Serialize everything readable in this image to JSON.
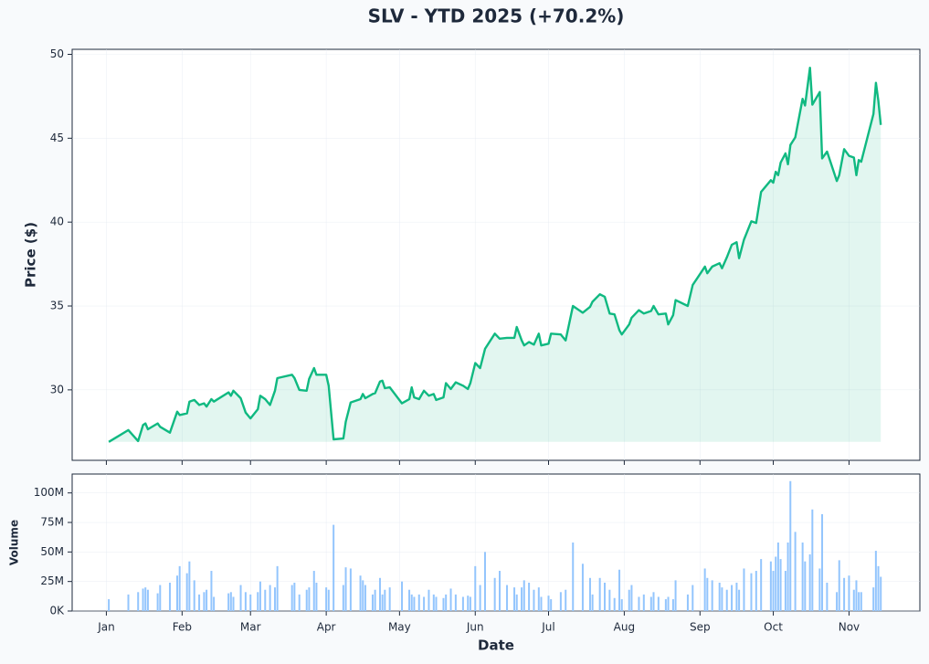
{
  "chart_data": [
    {
      "type": "line",
      "title": "SLV - YTD 2025 (+70.2%)",
      "ylabel": "Price ($)",
      "color": "#10b981",
      "x": [
        1,
        9,
        13,
        15,
        16,
        17,
        21,
        22,
        26,
        29,
        30,
        33,
        34,
        36,
        38,
        40,
        41,
        43,
        44,
        50,
        51,
        52,
        55,
        57,
        59,
        62,
        63,
        65,
        67,
        69,
        70,
        76,
        77,
        79,
        82,
        83,
        85,
        86,
        90,
        91,
        93,
        97,
        98,
        100,
        104,
        105,
        106,
        109,
        110,
        112,
        113,
        114,
        116,
        121,
        124,
        125,
        126,
        128,
        130,
        132,
        134,
        135,
        138,
        139,
        141,
        143,
        146,
        148,
        149,
        151,
        153,
        155,
        159,
        161,
        164,
        167,
        168,
        170,
        171,
        173,
        175,
        177,
        178,
        181,
        182,
        186,
        188,
        191,
        195,
        198,
        199,
        202,
        204,
        206,
        208,
        210,
        211,
        214,
        215,
        218,
        220,
        223,
        224,
        226,
        229,
        230,
        232,
        233,
        238,
        240,
        245,
        246,
        248,
        251,
        252,
        254,
        256,
        258,
        259,
        261,
        264,
        266,
        268,
        272,
        273,
        274,
        275,
        276,
        278,
        279,
        280,
        282,
        285,
        286,
        288,
        289,
        292,
        293,
        295,
        299,
        300,
        302,
        304,
        306,
        307,
        308,
        309,
        314,
        315,
        316,
        317
      ],
      "values": [
        26.9,
        27.6,
        26.95,
        27.9,
        28.0,
        27.65,
        28.0,
        27.8,
        27.45,
        28.7,
        28.5,
        28.6,
        29.3,
        29.4,
        29.1,
        29.2,
        29.0,
        29.45,
        29.3,
        29.85,
        29.65,
        29.95,
        29.5,
        28.65,
        28.3,
        28.85,
        29.65,
        29.45,
        29.1,
        29.95,
        30.7,
        30.9,
        30.7,
        30.0,
        29.95,
        30.65,
        31.3,
        30.9,
        30.9,
        30.25,
        27.05,
        27.1,
        28.1,
        29.25,
        29.45,
        29.75,
        29.5,
        29.75,
        29.8,
        30.5,
        30.55,
        30.1,
        30.15,
        29.2,
        29.45,
        30.15,
        29.55,
        29.45,
        29.95,
        29.65,
        29.75,
        29.4,
        29.55,
        30.4,
        30.05,
        30.45,
        30.25,
        30.05,
        30.4,
        31.6,
        31.3,
        32.45,
        33.35,
        33.05,
        33.1,
        33.1,
        33.75,
        32.95,
        32.65,
        32.85,
        32.7,
        33.35,
        32.65,
        32.75,
        33.35,
        33.3,
        32.95,
        35.0,
        34.6,
        34.95,
        35.25,
        35.7,
        35.55,
        34.55,
        34.5,
        33.55,
        33.3,
        33.9,
        34.3,
        34.75,
        34.55,
        34.7,
        35.0,
        34.5,
        34.55,
        33.9,
        34.45,
        35.35,
        35.0,
        36.25,
        37.35,
        36.95,
        37.35,
        37.55,
        37.25,
        37.9,
        38.65,
        38.8,
        37.85,
        38.95,
        40.05,
        39.95,
        41.8,
        42.5,
        42.35,
        43.0,
        42.8,
        43.55,
        44.1,
        43.45,
        44.6,
        45.05,
        47.35,
        46.95,
        49.2,
        47.0,
        47.75,
        43.8,
        44.2,
        42.45,
        42.8,
        44.35,
        43.95,
        43.85,
        42.8,
        43.7,
        43.6,
        46.45,
        48.3,
        47.25,
        45.8
      ],
      "ylim": [
        25.8,
        50.3
      ],
      "yticks": [
        30,
        35,
        40,
        45,
        50
      ],
      "grid": true
    },
    {
      "type": "bar",
      "xlabel": "Date",
      "ylabel": "Volume",
      "color": "#93c5fd",
      "x": [
        1,
        9,
        13,
        15,
        16,
        17,
        21,
        22,
        26,
        29,
        30,
        33,
        34,
        36,
        38,
        40,
        41,
        43,
        44,
        50,
        51,
        52,
        55,
        57,
        59,
        62,
        63,
        65,
        67,
        69,
        70,
        76,
        77,
        79,
        82,
        83,
        85,
        86,
        90,
        91,
        93,
        97,
        98,
        100,
        104,
        105,
        106,
        109,
        110,
        112,
        113,
        114,
        116,
        121,
        124,
        125,
        126,
        128,
        130,
        132,
        134,
        135,
        138,
        139,
        141,
        143,
        146,
        148,
        149,
        151,
        153,
        155,
        159,
        161,
        164,
        167,
        168,
        170,
        171,
        173,
        175,
        177,
        178,
        181,
        182,
        186,
        188,
        191,
        195,
        198,
        199,
        202,
        204,
        206,
        208,
        210,
        211,
        214,
        215,
        218,
        220,
        223,
        224,
        226,
        229,
        230,
        232,
        233,
        238,
        240,
        245,
        246,
        248,
        251,
        252,
        254,
        256,
        258,
        259,
        261,
        264,
        266,
        268,
        272,
        273,
        274,
        275,
        276,
        278,
        279,
        280,
        282,
        285,
        286,
        288,
        289,
        292,
        293,
        295,
        299,
        300,
        302,
        304,
        306,
        307,
        308,
        309,
        314,
        315,
        316,
        317
      ],
      "values": [
        10,
        14,
        16,
        19,
        20,
        18,
        15,
        22,
        24,
        30,
        38,
        32,
        42,
        26,
        14,
        16,
        18,
        34,
        12,
        15,
        16,
        12,
        22,
        16,
        14,
        16,
        25,
        18,
        22,
        20,
        38,
        22,
        24,
        14,
        18,
        20,
        34,
        24,
        20,
        18,
        73,
        22,
        37,
        36,
        30,
        26,
        22,
        14,
        18,
        28,
        14,
        18,
        20,
        25,
        18,
        14,
        12,
        14,
        12,
        18,
        14,
        12,
        11,
        14,
        19,
        14,
        12,
        13,
        12,
        38,
        22,
        50,
        28,
        34,
        22,
        20,
        14,
        20,
        26,
        24,
        18,
        20,
        12,
        13,
        10,
        16,
        18,
        58,
        40,
        28,
        14,
        28,
        24,
        18,
        11,
        35,
        10,
        18,
        22,
        12,
        14,
        12,
        16,
        12,
        10,
        12,
        10,
        26,
        14,
        22,
        36,
        28,
        26,
        24,
        20,
        18,
        22,
        24,
        18,
        36,
        32,
        34,
        44,
        42,
        34,
        46,
        58,
        44,
        34,
        58,
        110,
        67,
        58,
        42,
        48,
        86,
        36,
        82,
        24,
        16,
        43,
        28,
        30,
        18,
        26,
        16,
        16,
        20,
        51,
        38,
        29
      ],
      "ylim": [
        0,
        116
      ],
      "yticks": [
        {
          "value": 0,
          "label": "0K"
        },
        {
          "value": 25,
          "label": "25M"
        },
        {
          "value": 50,
          "label": "50M"
        },
        {
          "value": 75,
          "label": "75M"
        },
        {
          "value": 100,
          "label": "100M"
        }
      ],
      "xlim": [
        -14,
        333
      ],
      "xticks": [
        {
          "value": 0,
          "label": "Jan"
        },
        {
          "value": 31,
          "label": "Feb"
        },
        {
          "value": 59,
          "label": "Mar"
        },
        {
          "value": 90,
          "label": "Apr"
        },
        {
          "value": 120,
          "label": "May"
        },
        {
          "value": 151,
          "label": "Jun"
        },
        {
          "value": 181,
          "label": "Jul"
        },
        {
          "value": 212,
          "label": "Aug"
        },
        {
          "value": 243,
          "label": "Sep"
        },
        {
          "value": 273,
          "label": "Oct"
        },
        {
          "value": 304,
          "label": "Nov"
        }
      ],
      "grid": true
    }
  ]
}
